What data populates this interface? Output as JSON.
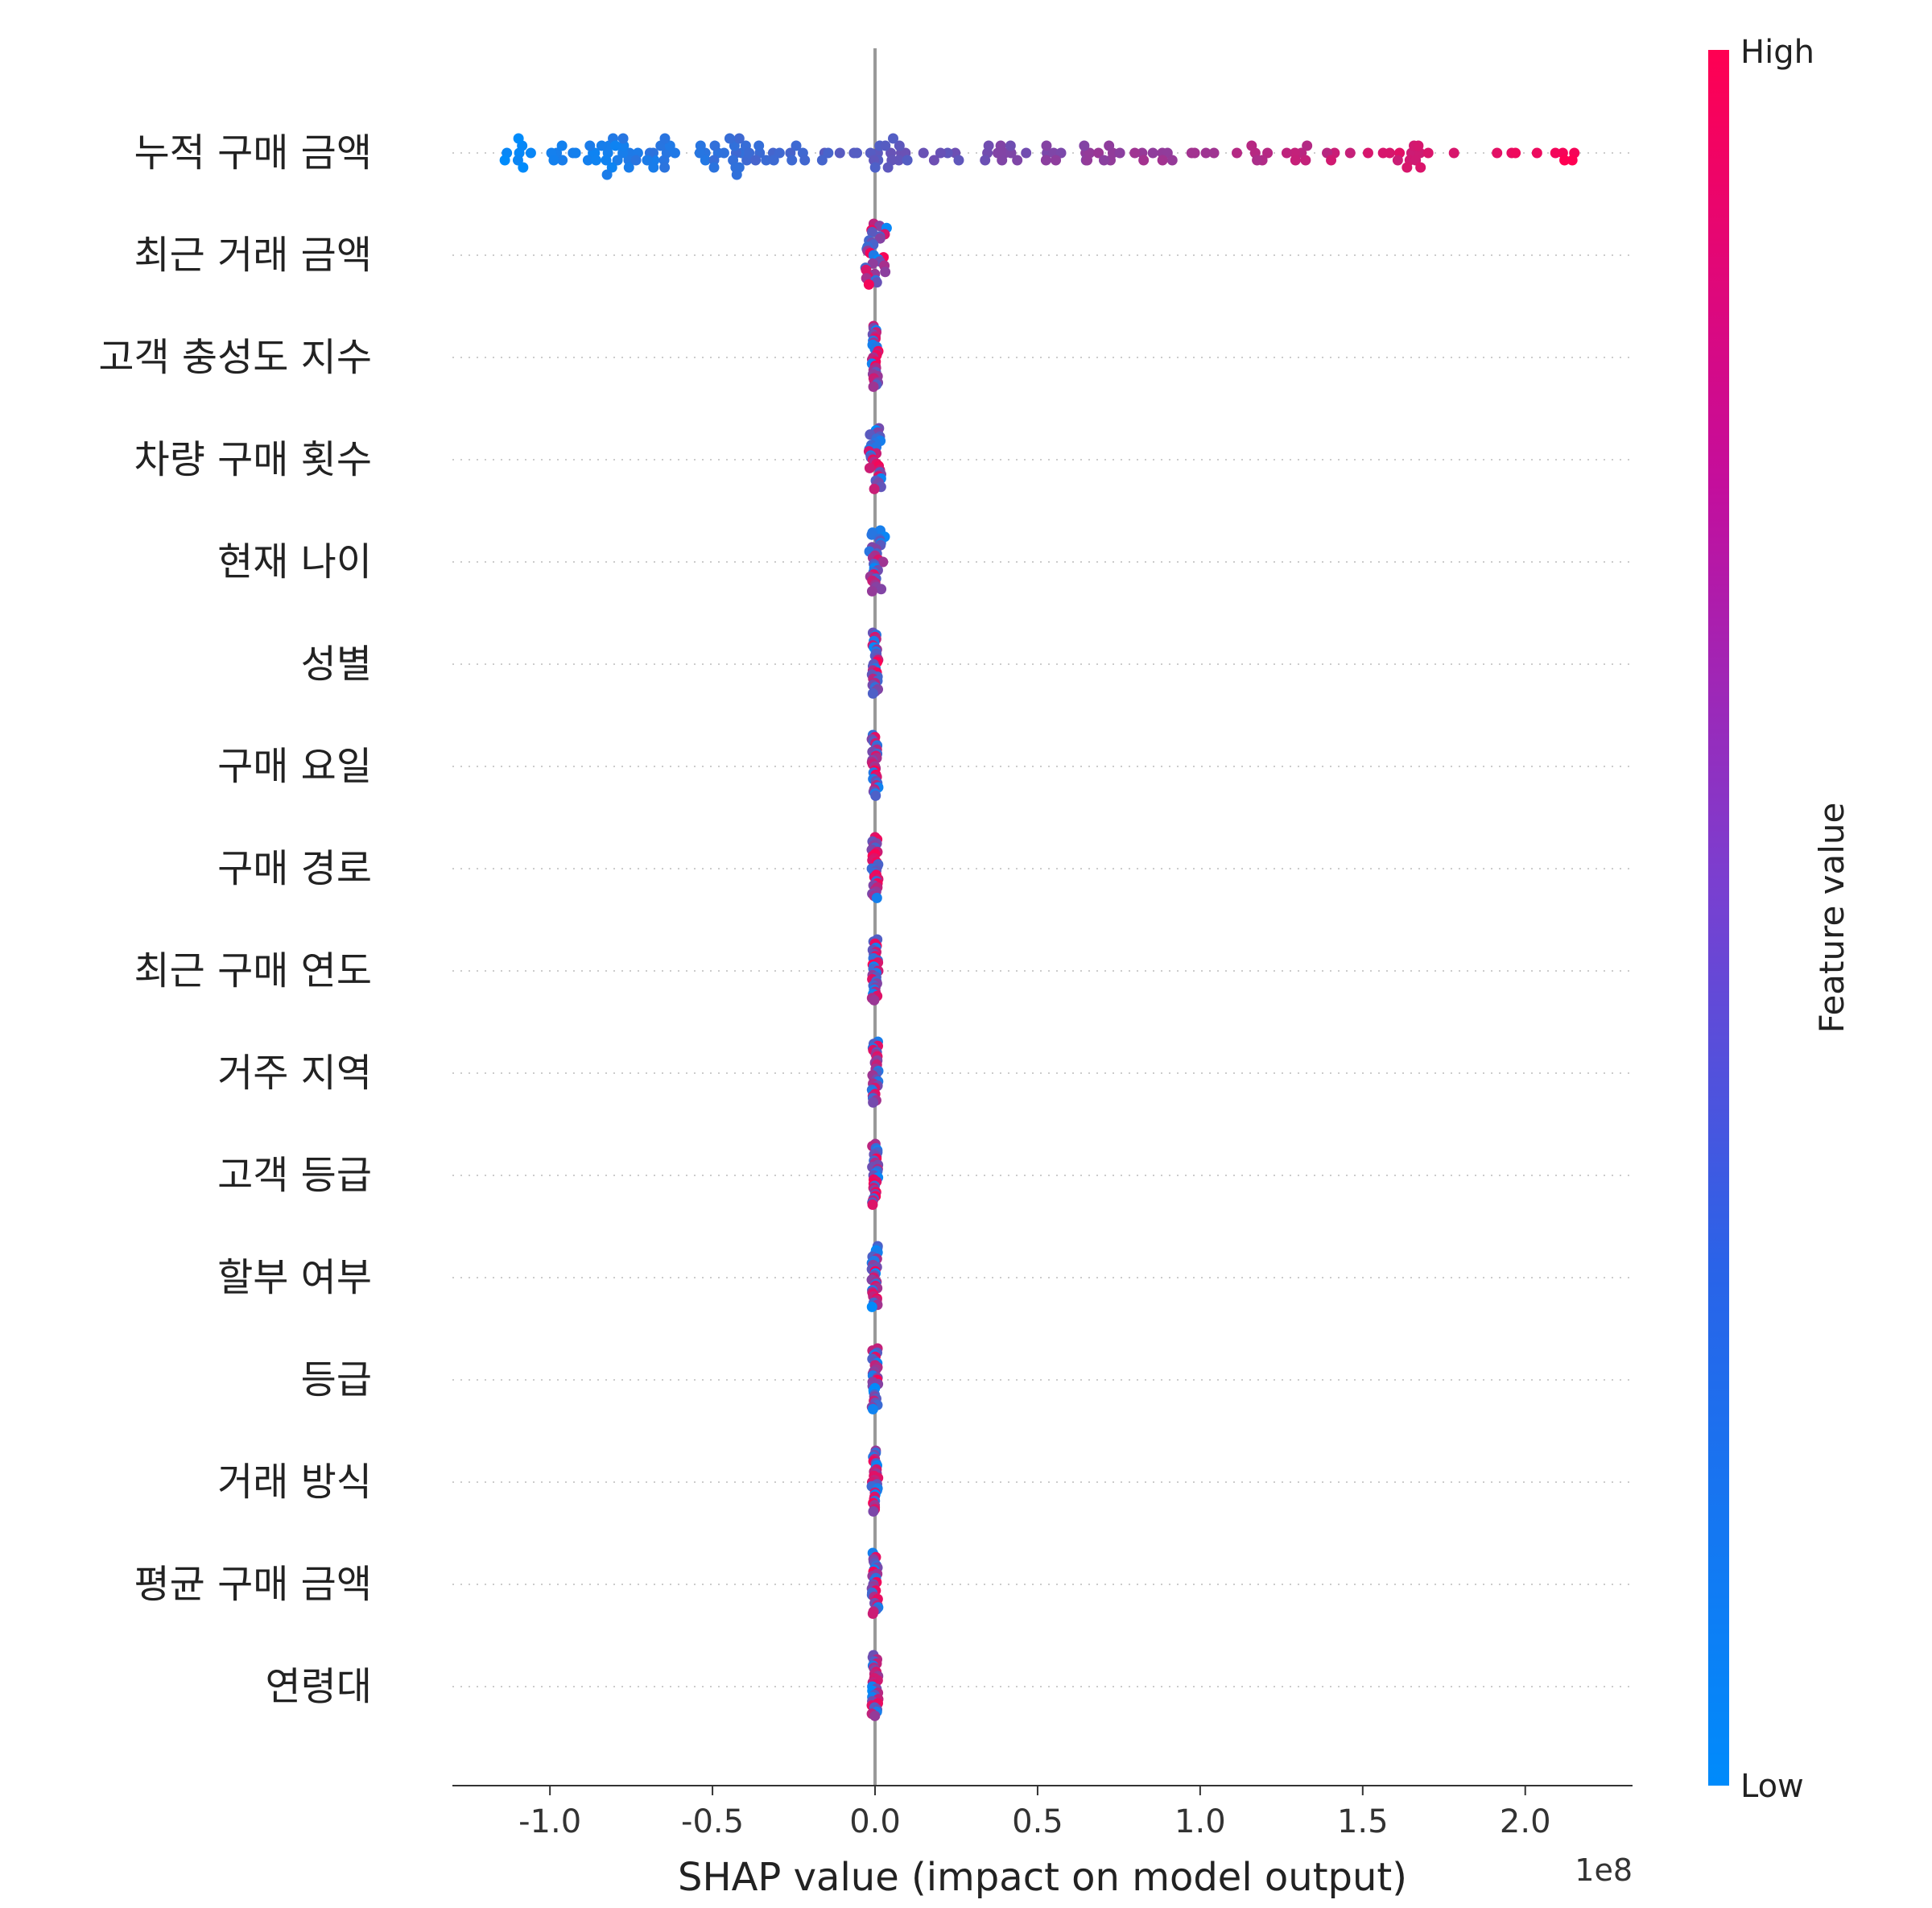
{
  "chart_data": {
    "type": "scatter",
    "subtype": "shap-beeswarm",
    "xlabel": "SHAP value (impact on model output)",
    "x_offset_label": "1e8",
    "xlim": [
      -1.3,
      2.33
    ],
    "xticks": [
      -1.0,
      -0.5,
      0.0,
      0.5,
      1.0,
      1.5,
      2.0
    ],
    "xtick_labels": [
      "-1.0",
      "-0.5",
      "0.0",
      "0.5",
      "1.0",
      "1.5",
      "2.0"
    ],
    "colorbar": {
      "title": "Feature value",
      "high_label": "High",
      "low_label": "Low",
      "colors": [
        "#008bfb",
        "#ff0052"
      ]
    },
    "features": [
      {
        "name": "누적 구매 금액",
        "spread": "wide",
        "x_min": -1.14,
        "x_max": 2.16
      },
      {
        "name": "최근 거래 금액",
        "spread": "narrow",
        "x_min": -0.03,
        "x_max": 0.04
      },
      {
        "name": "고객 충성도 지수",
        "spread": "narrow",
        "x_min": -0.01,
        "x_max": 0.01
      },
      {
        "name": "차량 구매 횟수",
        "spread": "narrow",
        "x_min": -0.02,
        "x_max": 0.02
      },
      {
        "name": "현재 나이",
        "spread": "narrow",
        "x_min": -0.02,
        "x_max": 0.03
      },
      {
        "name": "성별",
        "spread": "narrow",
        "x_min": -0.01,
        "x_max": 0.01
      },
      {
        "name": "구매 요일",
        "spread": "narrow",
        "x_min": -0.01,
        "x_max": 0.01
      },
      {
        "name": "구매 경로",
        "spread": "narrow",
        "x_min": -0.01,
        "x_max": 0.01
      },
      {
        "name": "최근 구매 연도",
        "spread": "narrow",
        "x_min": -0.01,
        "x_max": 0.01
      },
      {
        "name": "거주 지역",
        "spread": "narrow",
        "x_min": -0.01,
        "x_max": 0.01
      },
      {
        "name": "고객 등급",
        "spread": "narrow",
        "x_min": -0.01,
        "x_max": 0.01
      },
      {
        "name": "할부 여부",
        "spread": "narrow",
        "x_min": -0.01,
        "x_max": 0.01
      },
      {
        "name": "등급",
        "spread": "narrow",
        "x_min": -0.01,
        "x_max": 0.01
      },
      {
        "name": "거래 방식",
        "spread": "narrow",
        "x_min": -0.01,
        "x_max": 0.01
      },
      {
        "name": "평균 구매 금액",
        "spread": "narrow",
        "x_min": -0.01,
        "x_max": 0.01
      },
      {
        "name": "연령대",
        "spread": "narrow",
        "x_min": -0.01,
        "x_max": 0.01
      }
    ]
  }
}
